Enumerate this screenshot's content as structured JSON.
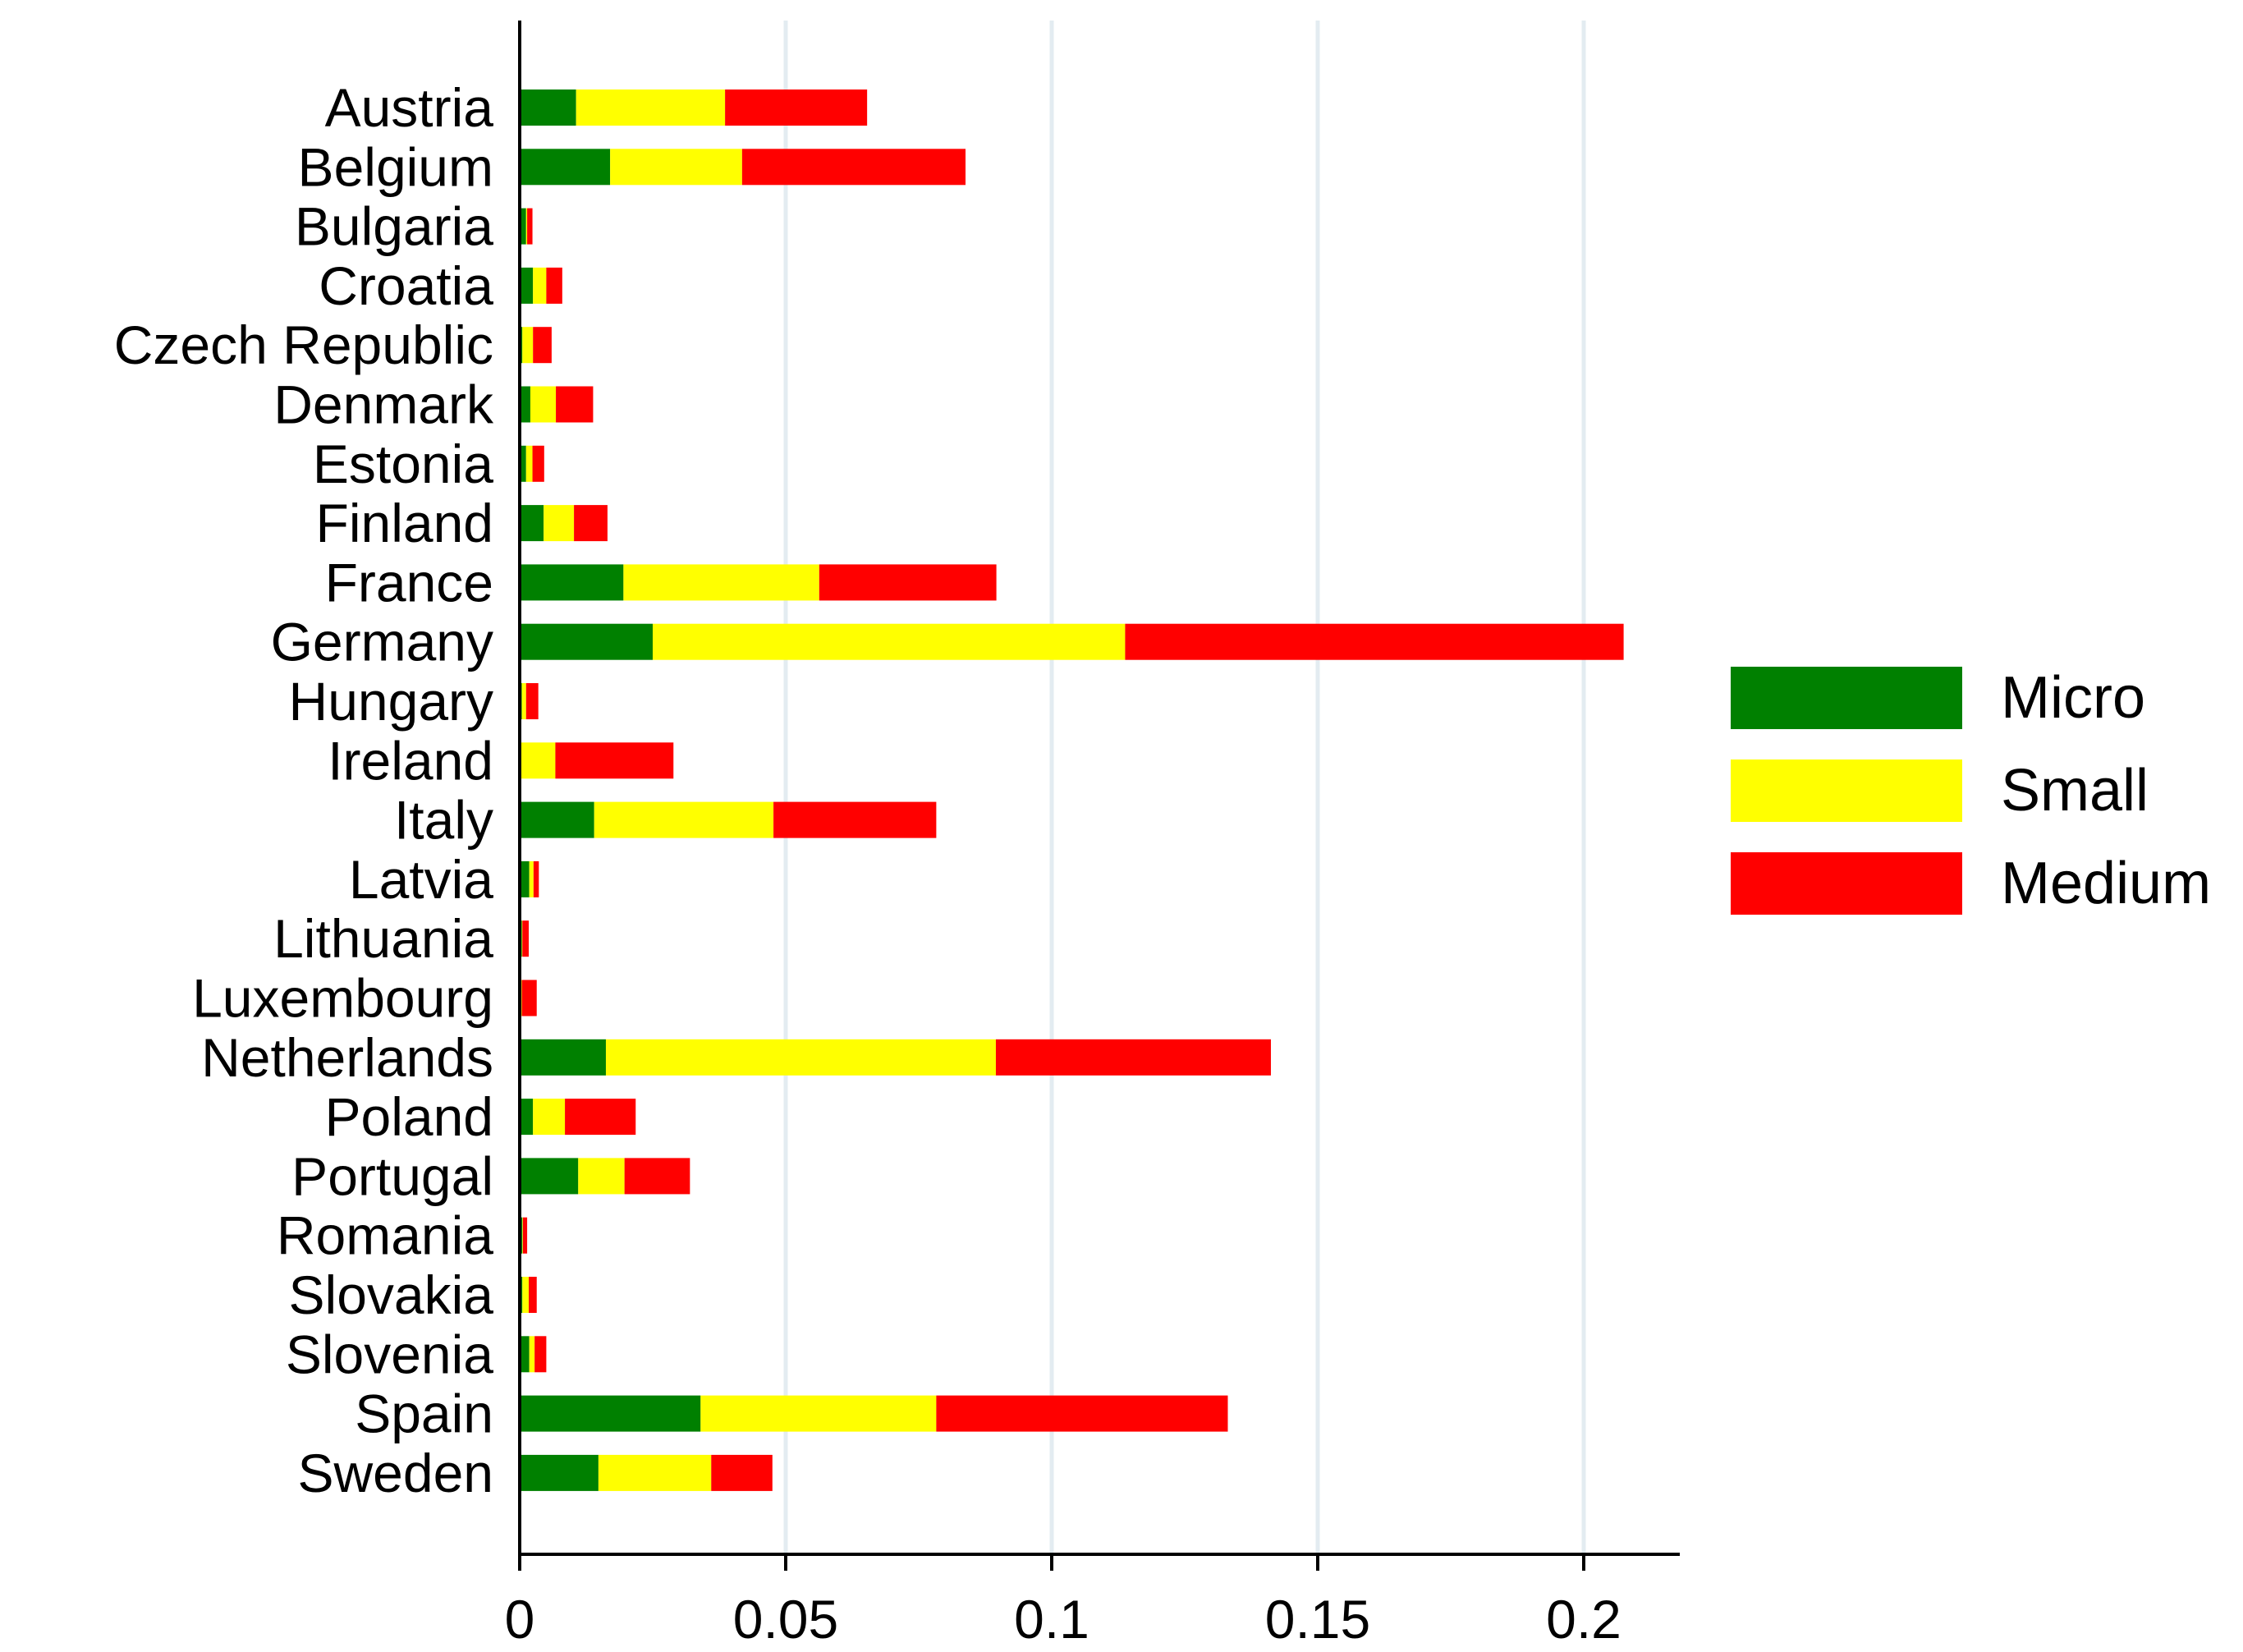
{
  "chart_data": {
    "type": "bar",
    "orientation": "horizontal",
    "stacked": true,
    "title": "",
    "xlabel": "",
    "ylabel": "",
    "xlim": [
      0,
      0.218
    ],
    "x_ticks": [
      0,
      0.05,
      0.1,
      0.15,
      0.2
    ],
    "x_tick_labels": [
      "0",
      "0.05",
      "0.1",
      "0.15",
      "0.2"
    ],
    "grid": "vertical",
    "legend_position": "right",
    "categories": [
      "Austria",
      "Belgium",
      "Bulgaria",
      "Croatia",
      "Czech Republic",
      "Denmark",
      "Estonia",
      "Finland",
      "France",
      "Germany",
      "Hungary",
      "Ireland",
      "Italy",
      "Latvia",
      "Lithuania",
      "Luxembourg",
      "Netherlands",
      "Poland",
      "Portugal",
      "Romania",
      "Slovakia",
      "Slovenia",
      "Spain",
      "Sweden"
    ],
    "series": [
      {
        "name": "Micro",
        "color": "#008000",
        "values": [
          0.0106,
          0.017,
          0.0012,
          0.0025,
          0.0005,
          0.002,
          0.0012,
          0.0045,
          0.0195,
          0.025,
          0.0004,
          0.0002,
          0.014,
          0.0018,
          0.0004,
          0.0003,
          0.0162,
          0.0025,
          0.011,
          0.0005,
          0.0005,
          0.0018,
          0.034,
          0.0148
        ]
      },
      {
        "name": "Small",
        "color": "#ffff00",
        "values": [
          0.028,
          0.0248,
          0.0002,
          0.0025,
          0.002,
          0.0048,
          0.0012,
          0.0057,
          0.0368,
          0.0888,
          0.0008,
          0.0065,
          0.0337,
          0.0008,
          0.0001,
          0.0001,
          0.0733,
          0.006,
          0.0087,
          0.0001,
          0.0012,
          0.001,
          0.0443,
          0.0212
        ]
      },
      {
        "name": "Medium",
        "color": "#ff0000",
        "values": [
          0.0267,
          0.042,
          0.001,
          0.003,
          0.0035,
          0.007,
          0.0022,
          0.0063,
          0.0333,
          0.0937,
          0.0023,
          0.0222,
          0.0306,
          0.001,
          0.0012,
          0.0028,
          0.0517,
          0.0133,
          0.0123,
          0.0008,
          0.0015,
          0.0022,
          0.0548,
          0.0115
        ]
      }
    ]
  }
}
